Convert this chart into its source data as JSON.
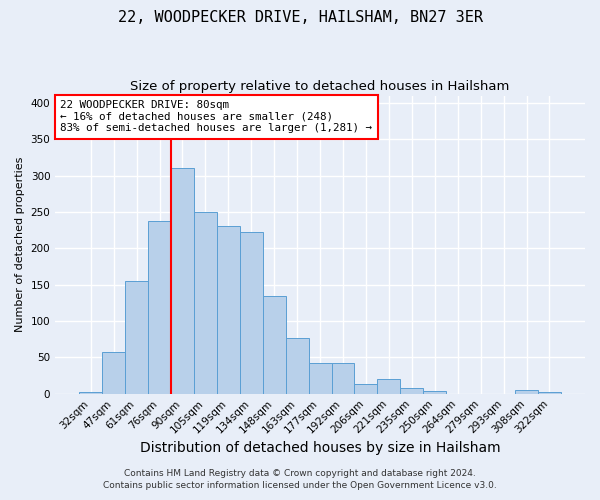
{
  "title": "22, WOODPECKER DRIVE, HAILSHAM, BN27 3ER",
  "subtitle": "Size of property relative to detached houses in Hailsham",
  "xlabel": "Distribution of detached houses by size in Hailsham",
  "ylabel": "Number of detached properties",
  "bin_labels": [
    "32sqm",
    "47sqm",
    "61sqm",
    "76sqm",
    "90sqm",
    "105sqm",
    "119sqm",
    "134sqm",
    "148sqm",
    "163sqm",
    "177sqm",
    "192sqm",
    "206sqm",
    "221sqm",
    "235sqm",
    "250sqm",
    "264sqm",
    "279sqm",
    "293sqm",
    "308sqm",
    "322sqm"
  ],
  "bar_values": [
    3,
    57,
    155,
    237,
    310,
    250,
    230,
    223,
    135,
    77,
    42,
    42,
    13,
    20,
    8,
    4,
    0,
    0,
    0,
    5,
    3
  ],
  "bar_color": "#b8d0ea",
  "bar_edge_color": "#5a9fd4",
  "vline_color": "red",
  "annotation_text": "22 WOODPECKER DRIVE: 80sqm\n← 16% of detached houses are smaller (248)\n83% of semi-detached houses are larger (1,281) →",
  "annotation_box_color": "white",
  "annotation_box_edge_color": "red",
  "ylim": [
    0,
    410
  ],
  "yticks": [
    0,
    50,
    100,
    150,
    200,
    250,
    300,
    350,
    400
  ],
  "footnote1": "Contains HM Land Registry data © Crown copyright and database right 2024.",
  "footnote2": "Contains public sector information licensed under the Open Government Licence v3.0.",
  "background_color": "#e8eef8",
  "grid_color": "white",
  "title_fontsize": 11,
  "subtitle_fontsize": 9.5,
  "xlabel_fontsize": 10,
  "ylabel_fontsize": 8,
  "tick_fontsize": 7.5,
  "annotation_fontsize": 7.8,
  "footnote_fontsize": 6.5
}
